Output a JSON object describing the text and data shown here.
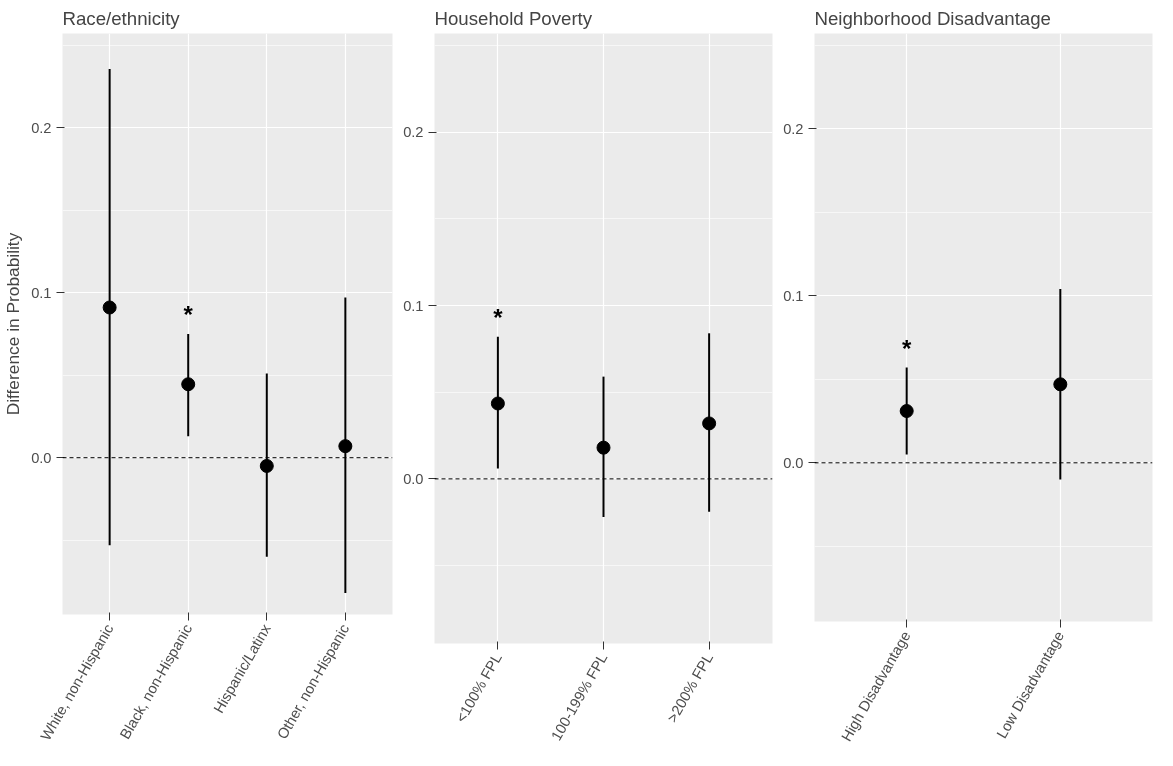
{
  "chart_data": [
    {
      "type": "scatter",
      "title": "Race/ethnicity",
      "ylabel": "Difference in Probability",
      "categories": [
        "White, non-Hispanic",
        "Black, non-Hispanic",
        "Hispanic/Latinx",
        "Other, non-Hispanic"
      ],
      "series": [
        {
          "color": "#000000",
          "values": [
            0.091,
            0.0445,
            -0.005,
            0.007
          ],
          "errors": [
            [
              -0.053,
              0.2355
            ],
            [
              0.013,
              0.075
            ],
            [
              -0.06,
              0.051
            ],
            [
              -0.082,
              0.097
            ]
          ]
        }
      ],
      "ylim": [
        -0.095,
        0.257
      ],
      "yticks": [
        {
          "value": -0.05,
          "label": null
        },
        {
          "value": 0,
          "label": "0.0"
        },
        {
          "value": 0.05,
          "label": null
        },
        {
          "value": 0.1,
          "label": "0.1"
        },
        {
          "value": 0.15,
          "label": null
        },
        {
          "value": 0.2,
          "label": "0.2"
        },
        {
          "value": 0.25,
          "label": null
        }
      ],
      "ref_lines": [
        {
          "axis": "y",
          "value": 0,
          "color": "#000000",
          "line_style": "dashed"
        }
      ],
      "annotations": [
        {
          "text": "*",
          "x": "Black, non-Hispanic",
          "y": 0.075
        }
      ],
      "grid": true,
      "marker": "circle"
    },
    {
      "type": "scatter",
      "title": "Household Poverty",
      "categories": [
        "<100% FPL",
        "100-199% FPL",
        ">200% FPL"
      ],
      "series": [
        {
          "color": "#000000",
          "values": [
            0.0435,
            0.018,
            0.032
          ],
          "errors": [
            [
              0.006,
              0.082
            ],
            [
              -0.022,
              0.059
            ],
            [
              -0.019,
              0.084
            ]
          ]
        }
      ],
      "ylim": [
        -0.095,
        0.257
      ],
      "yticks": [
        {
          "value": -0.05,
          "label": null
        },
        {
          "value": 0,
          "label": "0.0"
        },
        {
          "value": 0.05,
          "label": null
        },
        {
          "value": 0.1,
          "label": "0.1"
        },
        {
          "value": 0.15,
          "label": null
        },
        {
          "value": 0.2,
          "label": "0.2"
        },
        {
          "value": 0.25,
          "label": null
        }
      ],
      "ref_lines": [
        {
          "axis": "y",
          "value": 0,
          "color": "#000000",
          "line_style": "dashed"
        }
      ],
      "annotations": [
        {
          "text": "*",
          "x": "<100% FPL",
          "y": 0.082
        }
      ],
      "grid": true,
      "marker": "circle"
    },
    {
      "type": "scatter",
      "title": "Neighborhood Disadvantage",
      "categories": [
        "High Disadvantage",
        "Low Disadvantage"
      ],
      "series": [
        {
          "color": "#000000",
          "values": [
            0.031,
            0.047
          ],
          "errors": [
            [
              0.005,
              0.057
            ],
            [
              -0.01,
              0.104
            ]
          ]
        }
      ],
      "ylim": [
        -0.095,
        0.257
      ],
      "yticks": [
        {
          "value": -0.05,
          "label": null
        },
        {
          "value": 0,
          "label": "0.0"
        },
        {
          "value": 0.05,
          "label": null
        },
        {
          "value": 0.1,
          "label": "0.1"
        },
        {
          "value": 0.15,
          "label": null
        },
        {
          "value": 0.2,
          "label": "0.2"
        },
        {
          "value": 0.25,
          "label": null
        }
      ],
      "ref_lines": [
        {
          "axis": "y",
          "value": 0,
          "color": "#000000",
          "line_style": "dashed"
        }
      ],
      "annotations": [
        {
          "text": "*",
          "x": "High Disadvantage",
          "y": 0.057
        }
      ],
      "grid": true,
      "marker": "circle"
    }
  ]
}
